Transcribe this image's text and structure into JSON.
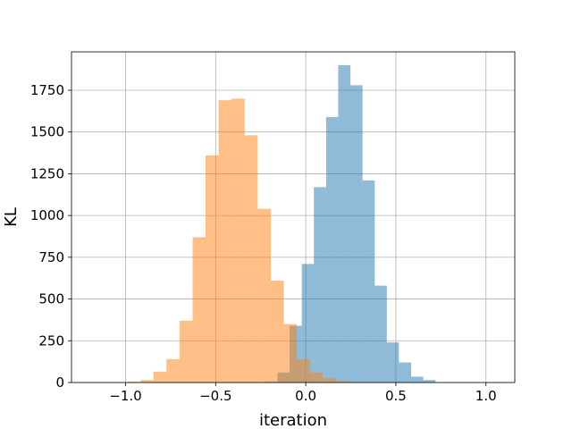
{
  "chart_data": {
    "type": "bar",
    "title": "",
    "xlabel": "iteration",
    "ylabel": "KL",
    "xlim": [
      -1.3,
      1.16
    ],
    "ylim": [
      0,
      1980
    ],
    "x_ticks": [
      -1.0,
      -0.5,
      0.0,
      0.5,
      1.0
    ],
    "x_tick_labels": [
      "−1.0",
      "−0.5",
      "0.0",
      "0.5",
      "1.0"
    ],
    "y_ticks": [
      0,
      250,
      500,
      750,
      1000,
      1250,
      1500,
      1750
    ],
    "y_tick_labels": [
      "0",
      "250",
      "500",
      "750",
      "1000",
      "1250",
      "1500",
      "1750"
    ],
    "grid": true,
    "legend": false,
    "series": [
      {
        "color": "#1f77b4",
        "opacity": 0.5,
        "bin_edges": [
          -0.225,
          -0.157,
          -0.09,
          -0.022,
          0.045,
          0.113,
          0.18,
          0.248,
          0.315,
          0.383,
          0.45,
          0.517,
          0.585,
          0.652,
          0.72
        ],
        "counts": [
          5,
          60,
          340,
          710,
          1170,
          1590,
          1900,
          1780,
          1210,
          580,
          240,
          120,
          35,
          15
        ]
      },
      {
        "color": "#ff7f0e",
        "opacity": 0.5,
        "bin_edges": [
          -0.99,
          -0.917,
          -0.845,
          -0.773,
          -0.701,
          -0.628,
          -0.556,
          -0.484,
          -0.411,
          -0.339,
          -0.267,
          -0.194,
          -0.122,
          -0.05,
          0.022,
          0.094,
          0.167,
          0.239
        ],
        "counts": [
          5,
          15,
          65,
          140,
          370,
          870,
          1360,
          1690,
          1700,
          1480,
          1040,
          610,
          350,
          140,
          60,
          25,
          8
        ]
      }
    ]
  }
}
